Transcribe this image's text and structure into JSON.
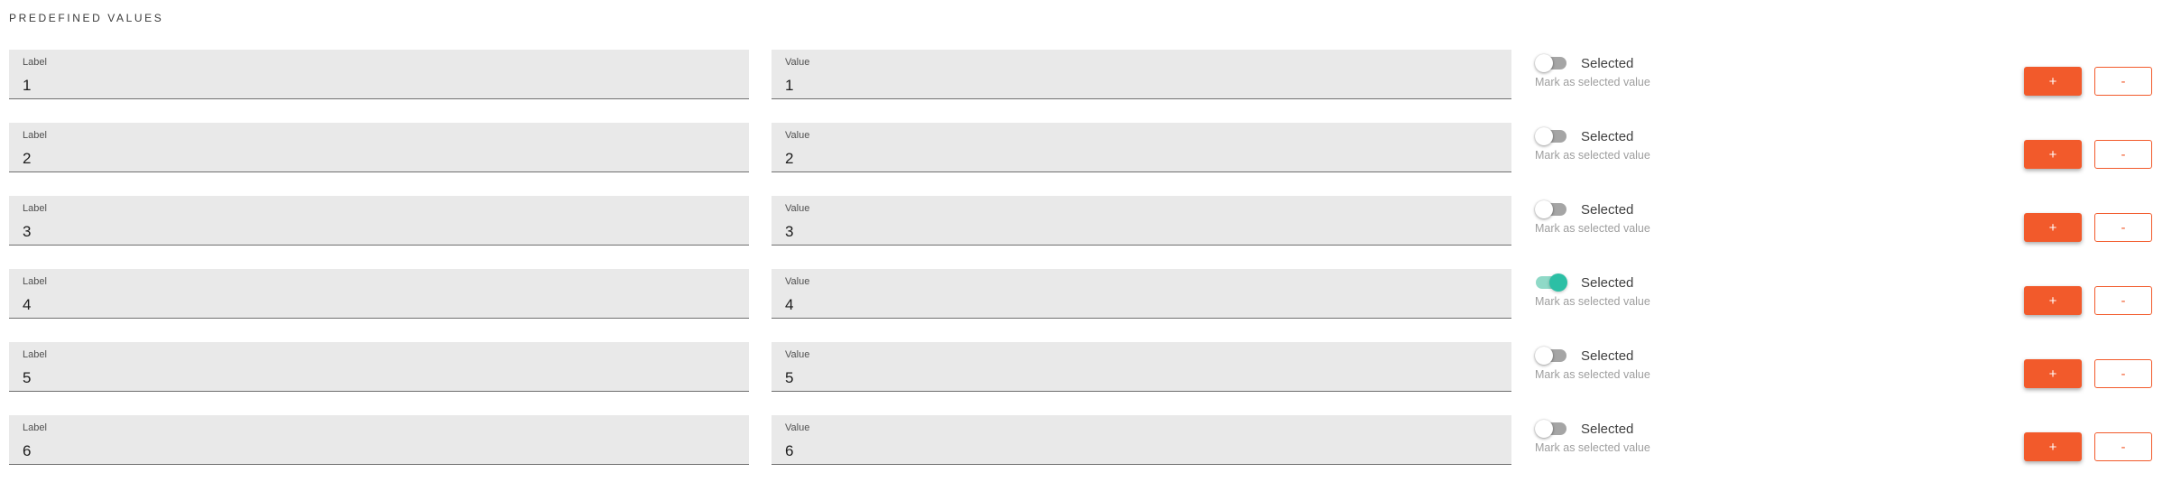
{
  "section": {
    "title": "PREDEFINED VALUES"
  },
  "shared": {
    "label_field_label": "Label",
    "value_field_label": "Value",
    "toggle_label": "Selected",
    "toggle_caption": "Mark as selected value",
    "add_button_label": "+",
    "remove_button_label": "-"
  },
  "rows": [
    {
      "label_value": "1",
      "value_value": "1",
      "selected": false
    },
    {
      "label_value": "2",
      "value_value": "2",
      "selected": false
    },
    {
      "label_value": "3",
      "value_value": "3",
      "selected": false
    },
    {
      "label_value": "4",
      "value_value": "4",
      "selected": true
    },
    {
      "label_value": "5",
      "value_value": "5",
      "selected": false
    },
    {
      "label_value": "6",
      "value_value": "6",
      "selected": false
    }
  ],
  "colors": {
    "accent_orange": "#F25A2B",
    "toggle_on_knob": "#2CBFA5",
    "toggle_on_track": "#8FD9C7",
    "toggle_off_track": "#A5A5A5",
    "field_background": "#E9E9E9",
    "field_border": "#6F6F6F"
  }
}
